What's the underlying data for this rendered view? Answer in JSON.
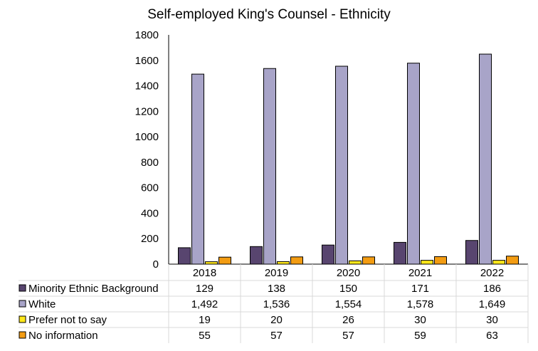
{
  "chart_data": {
    "type": "bar",
    "title": "Self-employed King's Counsel - Ethnicity",
    "categories": [
      "2018",
      "2019",
      "2020",
      "2021",
      "2022"
    ],
    "ylim": [
      0,
      1800
    ],
    "yticks": [
      0,
      200,
      400,
      600,
      800,
      1000,
      1200,
      1400,
      1600,
      1800
    ],
    "xlabel": "",
    "ylabel": "",
    "legend": "data-table-below",
    "series": [
      {
        "name": "Minority Ethnic Background",
        "color": "#58456f",
        "values": [
          129,
          138,
          150,
          171,
          186
        ],
        "labels": [
          "129",
          "138",
          "150",
          "171",
          "186"
        ]
      },
      {
        "name": "White",
        "color": "#a8a4c8",
        "values": [
          1492,
          1536,
          1554,
          1578,
          1649
        ],
        "labels": [
          "1,492",
          "1,536",
          "1,554",
          "1,578",
          "1,649"
        ]
      },
      {
        "name": "Prefer not to say",
        "color": "#ffe81a",
        "values": [
          19,
          20,
          26,
          30,
          30
        ],
        "labels": [
          "19",
          "20",
          "26",
          "30",
          "30"
        ]
      },
      {
        "name": "No information",
        "color": "#f39c12",
        "values": [
          55,
          57,
          57,
          59,
          63
        ],
        "labels": [
          "55",
          "57",
          "57",
          "59",
          "63"
        ]
      }
    ]
  }
}
